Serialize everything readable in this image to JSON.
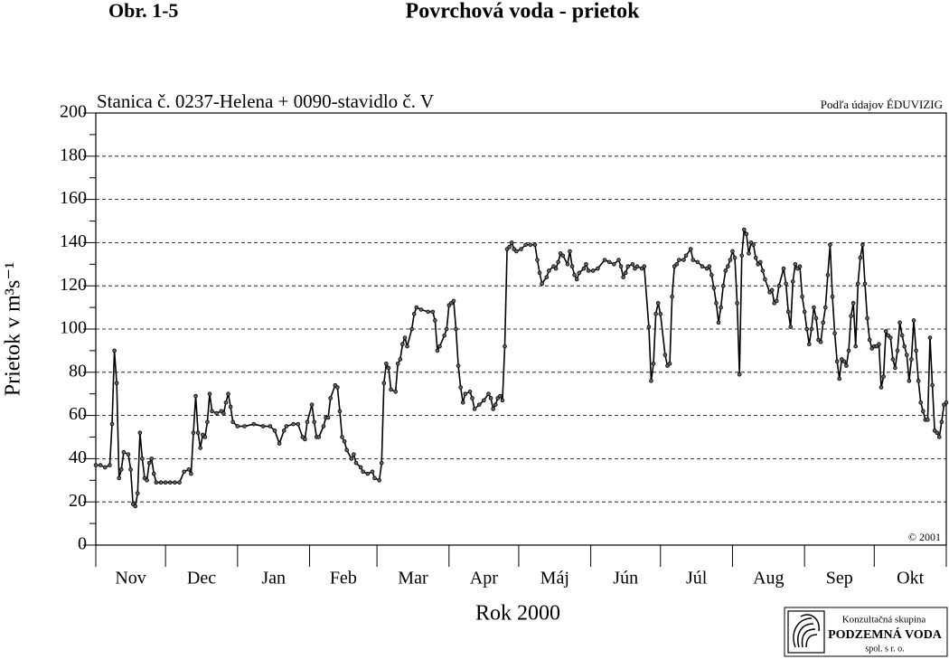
{
  "chart_data": {
    "type": "line",
    "figure_label": "Obr. 1-5",
    "title": "Povrchová voda - prietok",
    "subtitle": "Stanica č. 0237-Helena + 0090-stavidlo č. V",
    "source": "Podľa údajov ÉDUVIZIG",
    "copyright": "© 2001",
    "y_label": "Prietok v m³s⁻¹",
    "x_label": "Rok 2000",
    "logo": {
      "line1": "Konzultačná skupina",
      "line2": "PODZEMNÁ VODA",
      "line3": "spol. s r. o."
    },
    "months": [
      "Nov",
      "Dec",
      "Jan",
      "Feb",
      "Mar",
      "Apr",
      "Máj",
      "Jún",
      "Júl",
      "Aug",
      "Sep",
      "Okt"
    ],
    "xlim": [
      0,
      366
    ],
    "xticks": [
      0,
      30,
      61,
      92,
      121,
      152,
      182,
      213,
      243,
      274,
      305,
      335,
      366
    ],
    "ylim": [
      0,
      200
    ],
    "yticks": [
      0,
      20,
      40,
      60,
      80,
      100,
      120,
      140,
      160,
      180,
      200
    ],
    "yminorticks": [
      10,
      30,
      50,
      70,
      90,
      110,
      130,
      150,
      170,
      190
    ],
    "grid": true,
    "color": "#000000",
    "x": [
      0,
      2,
      4,
      6,
      7,
      8,
      9,
      10,
      11,
      12,
      14,
      15,
      16,
      17,
      18,
      19,
      20,
      21,
      22,
      23,
      24,
      25,
      26,
      28,
      30,
      32,
      34,
      36,
      38,
      40,
      41,
      42,
      43,
      44,
      45,
      46,
      47,
      48,
      49,
      50,
      52,
      54,
      55,
      56,
      57,
      58,
      59,
      61,
      64,
      68,
      72,
      75,
      77,
      79,
      81,
      82,
      85,
      87,
      89,
      90,
      91,
      93,
      94,
      95,
      96,
      98,
      99,
      100,
      101,
      103,
      104,
      105,
      106,
      107,
      108,
      110,
      111,
      112,
      114,
      115,
      117,
      119,
      120,
      122,
      123,
      124,
      125,
      126,
      127,
      129,
      130,
      131,
      132,
      133,
      134,
      136,
      137,
      138,
      140,
      143,
      145,
      146,
      147,
      148,
      150,
      151,
      152,
      153,
      154,
      155,
      156,
      157,
      158,
      159,
      161,
      162,
      163,
      165,
      167,
      169,
      170,
      171,
      172,
      173,
      174,
      175,
      176,
      177,
      178,
      179,
      180,
      181,
      183,
      185,
      187,
      189,
      190,
      191,
      192,
      194,
      195,
      197,
      198,
      199,
      200,
      201,
      203,
      204,
      205,
      206,
      207,
      208,
      210,
      211,
      212,
      214,
      216,
      219,
      221,
      223,
      225,
      226,
      227,
      228,
      229,
      231,
      232,
      233,
      235,
      236,
      238,
      239,
      240,
      241,
      242,
      243,
      245,
      246,
      247,
      248,
      249,
      250,
      251,
      253,
      254,
      256,
      257,
      259,
      261,
      263,
      264,
      265,
      266,
      267,
      268,
      269,
      270,
      271,
      272,
      273,
      274,
      275,
      276,
      277,
      278,
      279,
      280,
      281,
      282,
      283,
      284,
      285,
      286,
      287,
      288,
      290,
      291,
      292,
      293,
      294,
      296,
      297,
      298,
      299,
      300,
      301,
      302,
      303,
      304,
      305,
      306,
      307,
      308,
      309,
      310,
      311,
      312,
      313,
      314,
      315,
      316,
      317,
      318,
      319,
      320,
      321,
      322,
      323,
      324,
      325,
      326,
      327,
      328,
      329,
      330,
      331,
      332,
      333,
      334,
      335,
      336,
      337,
      338,
      339,
      340,
      341,
      342,
      343,
      344,
      345,
      346,
      347,
      348,
      349,
      350,
      351,
      352,
      353,
      354,
      355,
      356,
      357,
      358,
      359,
      360,
      361,
      362,
      363,
      364,
      365,
      366
    ],
    "values": [
      37,
      37,
      36,
      37,
      56,
      90,
      75,
      31,
      35,
      43,
      42,
      35,
      19,
      18,
      24,
      52,
      40,
      31,
      30,
      38,
      40,
      33,
      29,
      29,
      29,
      29,
      29,
      29,
      34,
      35,
      33,
      52,
      69,
      52,
      45,
      51,
      50,
      57,
      70,
      62,
      61,
      62,
      61,
      66,
      70,
      64,
      57,
      55,
      55,
      56,
      55,
      55,
      53,
      47,
      53,
      55,
      56,
      56,
      50,
      49,
      57,
      65,
      57,
      50,
      50,
      55,
      59,
      59,
      68,
      74,
      73,
      62,
      50,
      48,
      44,
      40,
      42,
      38,
      36,
      34,
      33,
      34,
      31,
      30,
      38,
      75,
      84,
      82,
      72,
      71,
      84,
      86,
      93,
      96,
      92,
      100,
      107,
      110,
      109,
      108,
      108,
      104,
      90,
      92,
      97,
      100,
      111,
      112,
      113,
      100,
      83,
      73,
      66,
      70,
      71,
      68,
      63,
      65,
      67,
      70,
      68,
      63,
      65,
      68,
      69,
      67,
      92,
      137,
      138,
      140,
      137,
      136,
      137,
      139,
      139,
      139,
      132,
      126,
      121,
      124,
      127,
      129,
      128,
      131,
      135,
      134,
      130,
      136,
      129,
      125,
      123,
      126,
      128,
      130,
      127,
      127,
      128,
      132,
      131,
      130,
      132,
      129,
      124,
      126,
      129,
      130,
      128,
      129,
      128,
      129,
      101,
      76,
      84,
      107,
      112,
      107,
      88,
      83,
      84,
      115,
      129,
      130,
      132,
      132,
      134,
      137,
      132,
      131,
      129,
      128,
      129,
      125,
      119,
      112,
      103,
      110,
      120,
      127,
      129,
      132,
      136,
      133,
      112,
      79,
      134,
      146,
      144,
      135,
      140,
      139,
      133,
      130,
      131,
      127,
      123,
      117,
      118,
      112,
      113,
      120,
      128,
      121,
      108,
      101,
      122,
      130,
      128,
      129,
      115,
      108,
      100,
      93,
      100,
      110,
      105,
      95,
      94,
      103,
      110,
      125,
      139,
      115,
      98,
      85,
      77,
      86,
      85,
      83,
      90,
      106,
      112,
      92,
      121,
      133,
      139,
      121,
      105,
      95,
      91,
      92,
      92,
      93,
      73,
      78,
      99,
      97,
      96,
      86,
      82,
      90,
      103,
      97,
      92,
      88,
      76,
      86,
      104,
      90,
      76,
      66,
      62,
      58,
      58,
      96,
      74,
      53,
      52,
      50,
      57,
      65,
      66
    ]
  }
}
